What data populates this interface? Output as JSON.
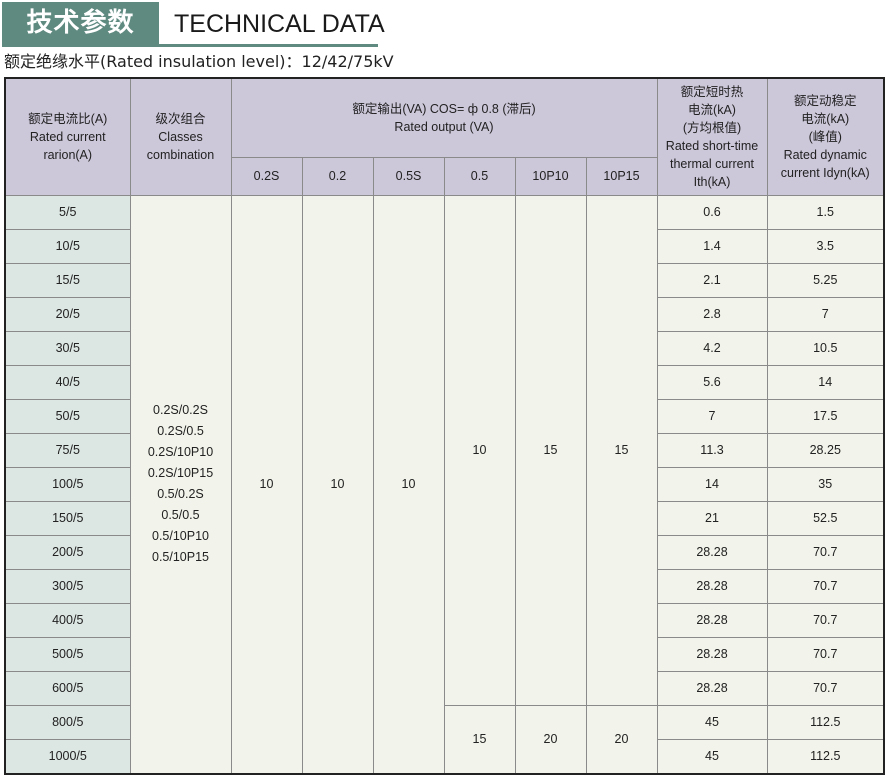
{
  "title": {
    "cn": "技术参数",
    "en": "TECHNICAL DATA"
  },
  "subtitle": "额定绝缘水平(Rated insulation level)：12/42/75kV",
  "table": {
    "headers": {
      "ratio": [
        "额定电流比(A)",
        "Rated current",
        "rarion(A)"
      ],
      "classes": [
        "级次组合",
        "Classes",
        "combination"
      ],
      "output": [
        "额定输出(VA) COS= ф 0.8 (滞后)",
        "Rated output (VA)"
      ],
      "output_cols": [
        "0.2S",
        "0.2",
        "0.5S",
        "0.5",
        "10P10",
        "10P15"
      ],
      "thermal": [
        "额定短时热",
        "电流(kA)",
        "(方均根值)",
        "Rated short-time",
        "thermal current",
        "Ith(kA)"
      ],
      "dynamic": [
        "额定动稳定",
        "电流(kA)",
        "(峰值)",
        "Rated dynamic",
        "current Idyn(kA)"
      ]
    },
    "ratios": [
      "5/5",
      "10/5",
      "15/5",
      "20/5",
      "30/5",
      "40/5",
      "50/5",
      "75/5",
      "100/5",
      "150/5",
      "200/5",
      "300/5",
      "400/5",
      "500/5",
      "600/5",
      "800/5",
      "1000/5"
    ],
    "thermal": [
      "0.6",
      "1.4",
      "2.1",
      "2.8",
      "4.2",
      "5.6",
      "7",
      "11.3",
      "14",
      "21",
      "28.28",
      "28.28",
      "28.28",
      "28.28",
      "28.28",
      "45",
      "45"
    ],
    "dynamic": [
      "1.5",
      "3.5",
      "5.25",
      "7",
      "10.5",
      "14",
      "17.5",
      "28.25",
      "35",
      "52.5",
      "70.7",
      "70.7",
      "70.7",
      "70.7",
      "70.7",
      "112.5",
      "112.5"
    ],
    "classes": [
      "0.2S/0.2S",
      "0.2S/0.5",
      "0.2S/10P10",
      "0.2S/10P15",
      "0.5/0.2S",
      "0.5/0.5",
      "0.5/10P10",
      "0.5/10P15"
    ],
    "output_all": [
      "10",
      "10",
      "10"
    ],
    "output_group1": [
      "10",
      "15",
      "15"
    ],
    "output_group2": [
      "15",
      "20",
      "20"
    ]
  }
}
